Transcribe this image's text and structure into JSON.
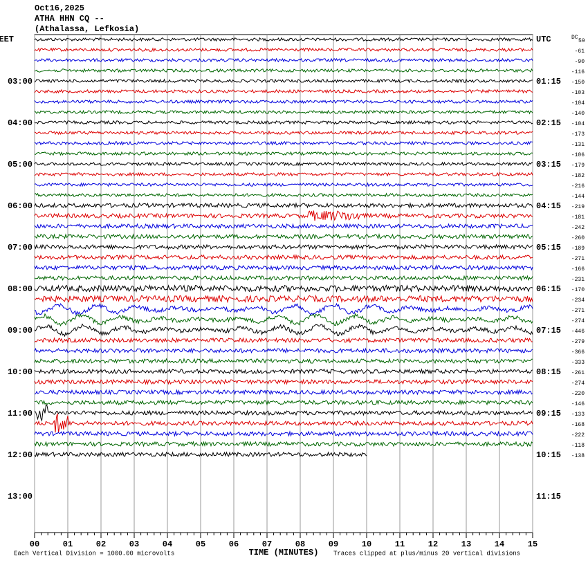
{
  "chart_data": {
    "type": "helicorder",
    "title_lines": [
      "Oct16,2025",
      "ATHA HHN CQ --",
      "(Athalassa, Lefkosia)"
    ],
    "dc_label": "DC",
    "left_labels": [
      "EET",
      null,
      null,
      null,
      "03:00",
      null,
      null,
      null,
      "04:00",
      null,
      null,
      null,
      "05:00",
      null,
      null,
      null,
      "06:00",
      null,
      null,
      null,
      "07:00",
      null,
      null,
      null,
      "08:00",
      null,
      null,
      null,
      "09:00",
      null,
      null,
      null,
      "10:00",
      null,
      null,
      null,
      "11:00",
      null,
      null,
      null,
      "12:00",
      null,
      null,
      null,
      "13:00"
    ],
    "right_labels": [
      "UTC",
      null,
      null,
      null,
      "01:15",
      null,
      null,
      null,
      "02:15",
      null,
      null,
      null,
      "03:15",
      null,
      null,
      null,
      "04:15",
      null,
      null,
      null,
      "05:15",
      null,
      null,
      null,
      "06:15",
      null,
      null,
      null,
      "07:15",
      null,
      null,
      null,
      "08:15",
      null,
      null,
      null,
      "09:15",
      null,
      null,
      null,
      "10:15",
      null,
      null,
      null,
      "11:15"
    ],
    "offsets": [
      59,
      -61,
      -90,
      -116,
      -150,
      -103,
      -104,
      -140,
      -104,
      -173,
      -131,
      -106,
      -179,
      -182,
      -216,
      -144,
      -219,
      -181,
      -242,
      -260,
      -189,
      -271,
      -166,
      -231,
      -170,
      -234,
      -271,
      -274,
      -446,
      -279,
      -366,
      -333,
      -261,
      -274,
      -220,
      -146,
      -133,
      -168,
      -222,
      -118,
      -138,
      null,
      null,
      null,
      null
    ],
    "colors": [
      "#000000",
      "#dd0000",
      "#0000dd",
      "#006600"
    ],
    "xlim": [
      0,
      15
    ],
    "xticks": [
      {
        "value": 0,
        "label": "00"
      },
      {
        "value": 1,
        "label": "01"
      },
      {
        "value": 2,
        "label": "02"
      },
      {
        "value": 3,
        "label": "03"
      },
      {
        "value": 4,
        "label": "04"
      },
      {
        "value": 5,
        "label": "05"
      },
      {
        "value": 6,
        "label": "06"
      },
      {
        "value": 7,
        "label": "07"
      },
      {
        "value": 8,
        "label": "08"
      },
      {
        "value": 9,
        "label": "09"
      },
      {
        "value": 10,
        "label": "10"
      },
      {
        "value": 11,
        "label": "11"
      },
      {
        "value": 12,
        "label": "12"
      },
      {
        "value": 13,
        "label": "13"
      },
      {
        "value": 14,
        "label": "14"
      },
      {
        "value": 15,
        "label": "15"
      }
    ],
    "x_label": "TIME (MINUTES)",
    "footer_left": "Each Vertical Division = 1000.00 microvolts",
    "footer_right": "Traces clipped at plus/minus 20 vertical divisions"
  }
}
